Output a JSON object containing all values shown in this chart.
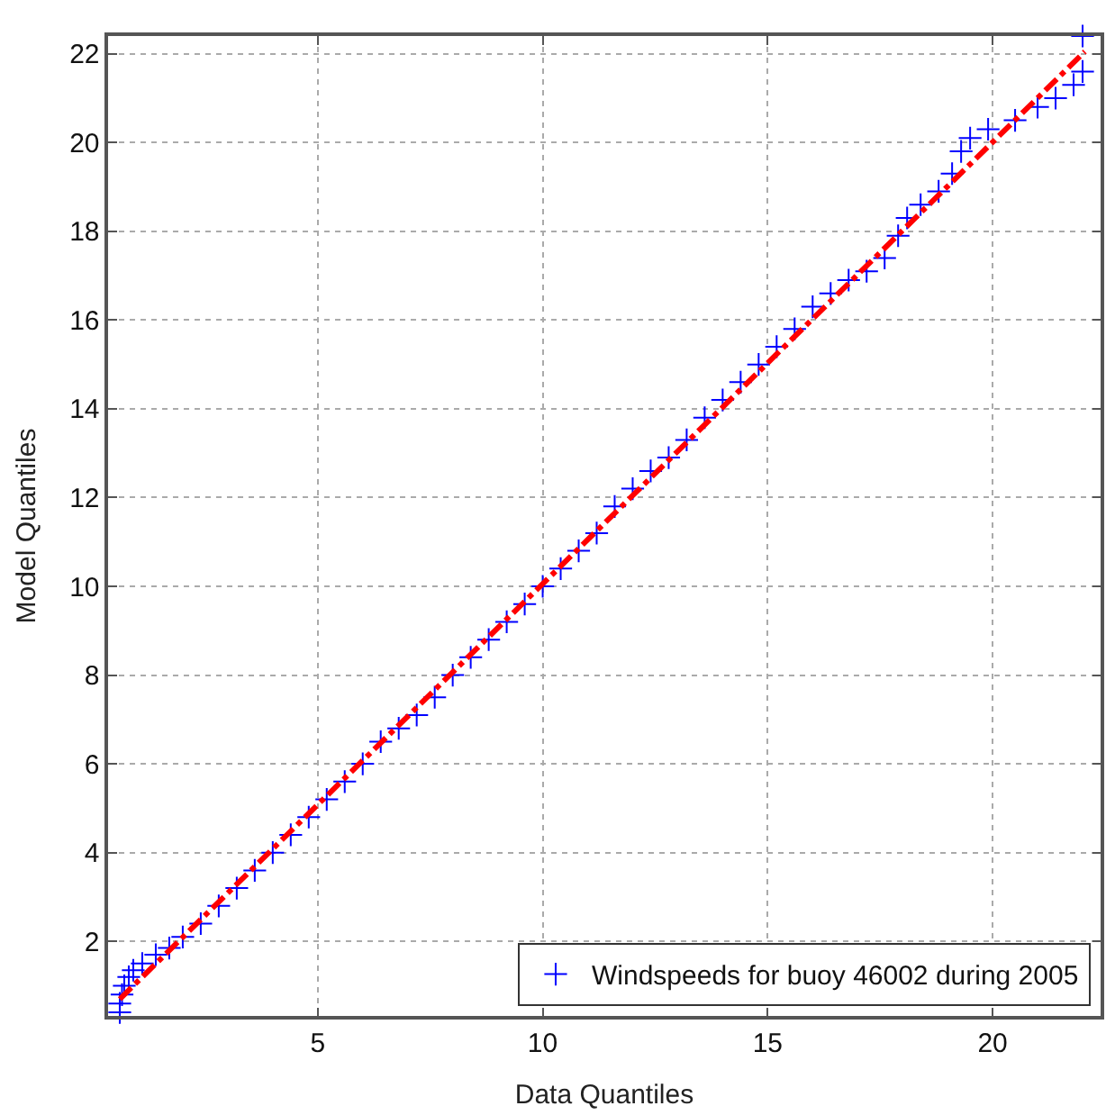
{
  "chart_data": {
    "type": "scatter",
    "xlabel": "Data Quantiles",
    "ylabel": "Model Quantiles",
    "xlim": [
      0.34,
      22.4
    ],
    "ylim": [
      0.32,
      22.4
    ],
    "xticks": [
      5,
      10,
      15,
      20
    ],
    "yticks": [
      2,
      4,
      6,
      8,
      10,
      12,
      14,
      16,
      18,
      20,
      22
    ],
    "grid": true,
    "legend": "bottom right",
    "marker": "cross",
    "series": [
      {
        "name": "Windspeeds for buoy 46002 during 2005",
        "color": "#0000ff",
        "x": [
          0.6,
          0.6,
          0.65,
          0.7,
          0.8,
          0.9,
          1.1,
          1.4,
          1.7,
          2.0,
          2.4,
          2.8,
          3.2,
          3.6,
          4.0,
          4.4,
          4.8,
          5.2,
          5.6,
          6.0,
          6.4,
          6.8,
          7.2,
          7.6,
          8.0,
          8.4,
          8.8,
          9.2,
          9.6,
          10.0,
          10.4,
          10.8,
          11.2,
          11.6,
          12.0,
          12.4,
          12.8,
          13.2,
          13.6,
          14.0,
          14.4,
          14.8,
          15.2,
          15.6,
          16.0,
          16.4,
          16.8,
          17.2,
          17.6,
          17.9,
          18.1,
          18.4,
          18.8,
          19.1,
          19.3,
          19.5,
          19.9,
          20.5,
          21.0,
          21.4,
          21.8,
          22.0,
          22.0
        ],
        "values": [
          0.4,
          0.6,
          0.8,
          1.0,
          1.2,
          1.35,
          1.5,
          1.7,
          1.85,
          2.1,
          2.4,
          2.8,
          3.2,
          3.6,
          4.0,
          4.4,
          4.8,
          5.2,
          5.6,
          6.0,
          6.5,
          6.8,
          7.1,
          7.5,
          8.0,
          8.4,
          8.8,
          9.2,
          9.6,
          10.0,
          10.4,
          10.8,
          11.2,
          11.8,
          12.2,
          12.6,
          12.9,
          13.3,
          13.8,
          14.2,
          14.6,
          15.0,
          15.4,
          15.8,
          16.3,
          16.6,
          16.9,
          17.1,
          17.4,
          17.9,
          18.3,
          18.6,
          18.9,
          19.3,
          19.8,
          20.1,
          20.3,
          20.5,
          20.8,
          21.0,
          21.3,
          21.6,
          22.4
        ]
      },
      {
        "type": "line",
        "color": "#ff0000",
        "line_style": "dashed",
        "marker": "none",
        "x": [
          0.6,
          22.05
        ],
        "values": [
          0.7,
          22.05
        ]
      }
    ]
  }
}
